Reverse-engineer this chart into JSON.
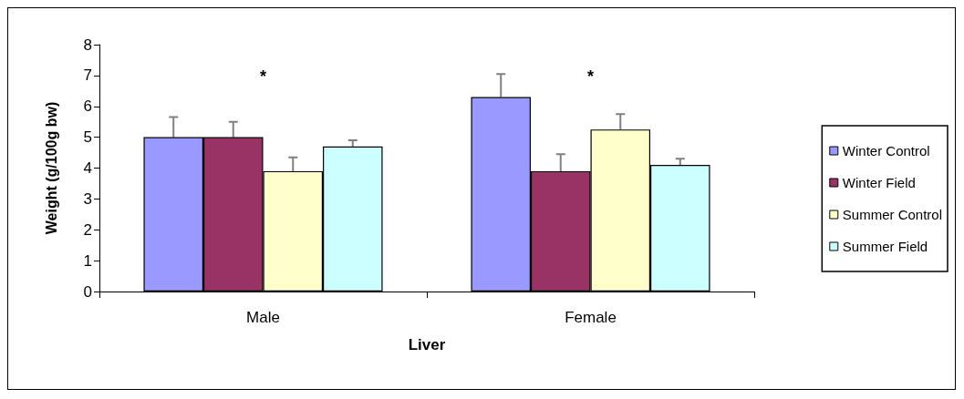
{
  "chart_data": {
    "type": "bar",
    "xlabel": "Liver",
    "ylabel": "Weight (g/100g bw)",
    "categories": [
      "Male",
      "Female"
    ],
    "series": [
      {
        "name": "Winter Control",
        "color": "#9999ff",
        "values": [
          5.0,
          6.3
        ],
        "errors": [
          [
            5.0,
            5.65
          ],
          [
            6.3,
            7.05
          ]
        ]
      },
      {
        "name": "Winter Field",
        "color": "#993366",
        "values": [
          5.0,
          3.9
        ],
        "errors": [
          [
            5.0,
            5.5
          ],
          [
            3.9,
            4.45
          ]
        ]
      },
      {
        "name": "Summer Control",
        "color": "#ffffcc",
        "values": [
          3.9,
          5.25
        ],
        "errors": [
          [
            3.9,
            4.35
          ],
          [
            5.25,
            5.75
          ]
        ]
      },
      {
        "name": "Summer Field",
        "color": "#ccffff",
        "values": [
          4.7,
          4.1
        ],
        "errors": [
          [
            4.7,
            4.9
          ],
          [
            4.1,
            4.3
          ]
        ]
      }
    ],
    "ylim": [
      0,
      8
    ],
    "yticks": [
      0,
      1,
      2,
      3,
      4,
      5,
      6,
      7,
      8
    ],
    "grid": false,
    "legend": "right",
    "annotations": [
      "*",
      "*"
    ]
  }
}
